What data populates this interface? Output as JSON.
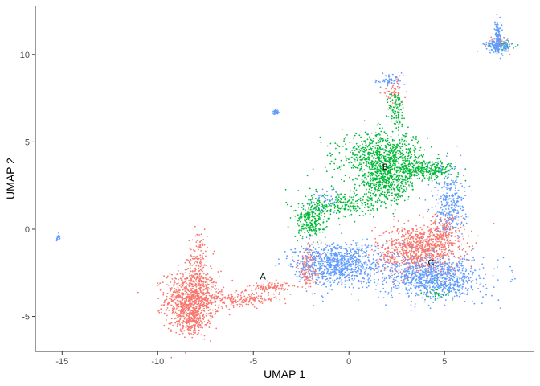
{
  "chart_data": {
    "type": "scatter",
    "title": "",
    "xlabel": "UMAP 1",
    "ylabel": "UMAP 2",
    "xlim": [
      -16.4,
      9.7
    ],
    "ylim": [
      -7.0,
      12.8
    ],
    "x_ticks": [
      -15,
      -10,
      -5,
      0,
      5
    ],
    "y_ticks": [
      -5,
      0,
      5,
      10
    ],
    "x_tick_labels": [
      "-15",
      "-10",
      "-5",
      "0",
      "5"
    ],
    "y_tick_labels": [
      "-5",
      "0",
      "5",
      "10"
    ],
    "grid": false,
    "legend": "none",
    "colors": {
      "red": "#F8766D",
      "green": "#00BA38",
      "blue": "#619CFF"
    },
    "cluster_labels": [
      {
        "text": "A",
        "x": -4.5,
        "y": -2.7
      },
      {
        "text": "B",
        "x": 1.9,
        "y": 3.6
      },
      {
        "text": "C",
        "x": 4.3,
        "y": -1.9
      }
    ],
    "point_groups": [
      {
        "color": "red",
        "cx": -8.2,
        "cy": -4.0,
        "sx": 0.7,
        "sy": 0.8,
        "n": 900
      },
      {
        "color": "red",
        "cx": -8.3,
        "cy": -5.3,
        "sx": 0.4,
        "sy": 0.4,
        "n": 200
      },
      {
        "color": "red",
        "cx": -7.9,
        "cy": -1.8,
        "sx": 0.25,
        "sy": 0.9,
        "n": 150
      },
      {
        "color": "red",
        "cx": -5.6,
        "cy": -4.0,
        "sx": 1.0,
        "sy": 0.2,
        "n": 200
      },
      {
        "color": "red",
        "cx": -4.1,
        "cy": -3.3,
        "sx": 0.5,
        "sy": 0.15,
        "n": 100
      },
      {
        "color": "red",
        "cx": 3.6,
        "cy": -1.2,
        "sx": 1.1,
        "sy": 0.7,
        "n": 900
      },
      {
        "color": "red",
        "cx": 4.9,
        "cy": -0.2,
        "sx": 0.5,
        "sy": 0.5,
        "n": 200
      },
      {
        "color": "red",
        "cx": -2.1,
        "cy": -2.2,
        "sx": 0.3,
        "sy": 0.7,
        "n": 150
      },
      {
        "color": "red",
        "cx": 2.3,
        "cy": 7.8,
        "sx": 0.3,
        "sy": 0.35,
        "n": 60
      },
      {
        "color": "red",
        "cx": 7.9,
        "cy": 10.7,
        "sx": 0.3,
        "sy": 0.2,
        "n": 50
      },
      {
        "color": "green",
        "cx": 1.8,
        "cy": 4.1,
        "sx": 1.1,
        "sy": 0.7,
        "n": 800
      },
      {
        "color": "green",
        "cx": 1.9,
        "cy": 2.6,
        "sx": 0.7,
        "sy": 0.6,
        "n": 400
      },
      {
        "color": "green",
        "cx": 4.0,
        "cy": 3.4,
        "sx": 0.9,
        "sy": 0.25,
        "n": 300
      },
      {
        "color": "green",
        "cx": -2.0,
        "cy": 0.5,
        "sx": 0.4,
        "sy": 0.5,
        "n": 250
      },
      {
        "color": "green",
        "cx": -0.4,
        "cy": 1.4,
        "sx": 0.9,
        "sy": 0.4,
        "n": 250
      },
      {
        "color": "green",
        "cx": 2.5,
        "cy": 6.8,
        "sx": 0.2,
        "sy": 0.6,
        "n": 100
      },
      {
        "color": "green",
        "cx": 4.5,
        "cy": -3.6,
        "sx": 0.5,
        "sy": 0.3,
        "n": 50
      },
      {
        "color": "green",
        "cx": 8.1,
        "cy": 10.5,
        "sx": 0.3,
        "sy": 0.15,
        "n": 40
      },
      {
        "color": "blue",
        "cx": -0.6,
        "cy": -2.0,
        "sx": 1.1,
        "sy": 0.6,
        "n": 900
      },
      {
        "color": "blue",
        "cx": 4.4,
        "cy": -2.8,
        "sx": 1.3,
        "sy": 0.6,
        "n": 900
      },
      {
        "color": "blue",
        "cx": 5.3,
        "cy": 1.6,
        "sx": 0.4,
        "sy": 1.0,
        "n": 300
      },
      {
        "color": "blue",
        "cx": 2.2,
        "cy": 8.5,
        "sx": 0.35,
        "sy": 0.2,
        "n": 60
      },
      {
        "color": "blue",
        "cx": -3.8,
        "cy": 6.7,
        "sx": 0.08,
        "sy": 0.06,
        "n": 40
      },
      {
        "color": "blue",
        "cx": -15.2,
        "cy": -0.45,
        "sx": 0.08,
        "sy": 0.1,
        "n": 20
      },
      {
        "color": "blue",
        "cx": 7.8,
        "cy": 11.2,
        "sx": 0.1,
        "sy": 0.5,
        "n": 100
      },
      {
        "color": "blue",
        "cx": 7.8,
        "cy": 10.5,
        "sx": 0.35,
        "sy": 0.2,
        "n": 150
      },
      {
        "color": "blue",
        "cx": -1.2,
        "cy": 1.7,
        "sx": 0.4,
        "sy": 0.3,
        "n": 40
      }
    ]
  }
}
